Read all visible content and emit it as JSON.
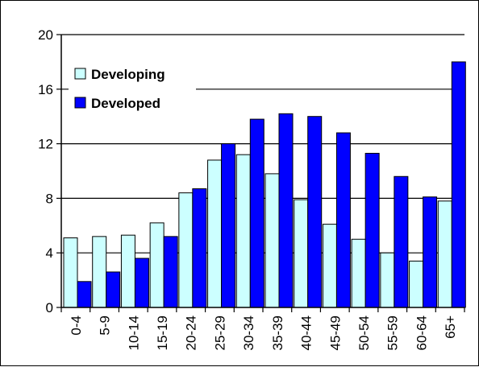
{
  "chart_data": {
    "type": "bar",
    "categories": [
      "0-4",
      "5-9",
      "10-14",
      "15-19",
      "20-24",
      "25-29",
      "30-34",
      "35-39",
      "40-44",
      "45-49",
      "50-54",
      "55-59",
      "60-64",
      "65+"
    ],
    "series": [
      {
        "name": "Developing",
        "color": "#ccffff",
        "values": [
          5.1,
          5.2,
          5.3,
          6.2,
          8.4,
          10.8,
          11.2,
          9.8,
          7.9,
          6.1,
          5.0,
          4.0,
          3.4,
          7.8
        ]
      },
      {
        "name": "Developed",
        "color": "#0000ff",
        "values": [
          1.9,
          2.6,
          3.6,
          5.2,
          8.7,
          12.0,
          13.8,
          14.2,
          14.0,
          12.8,
          11.3,
          9.6,
          8.1,
          18.0
        ]
      }
    ],
    "ylim": [
      0,
      20
    ],
    "yticks": [
      0,
      4,
      8,
      12,
      16,
      20
    ],
    "grid": true,
    "legend": "top-left"
  }
}
